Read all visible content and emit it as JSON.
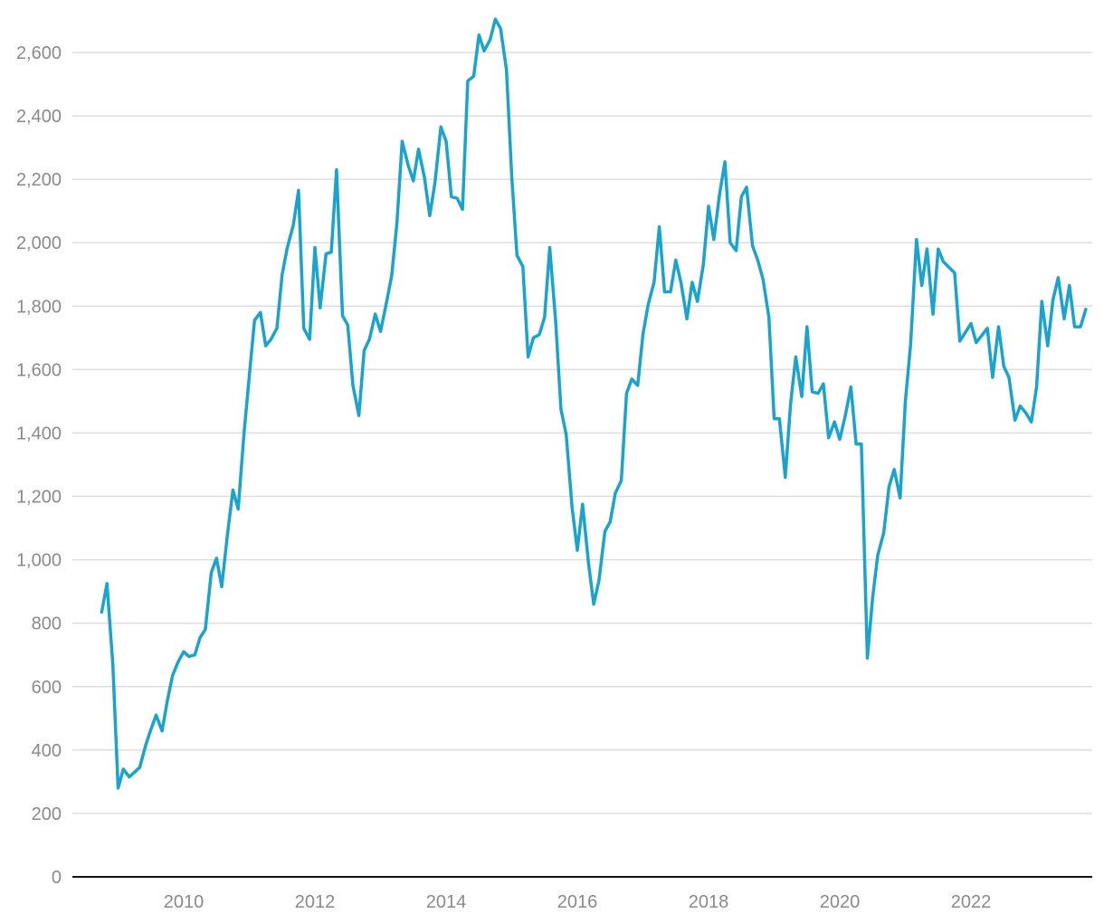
{
  "chart_data": {
    "type": "line",
    "title": "",
    "xlabel": "",
    "ylabel": "",
    "ylim": [
      0,
      2600
    ],
    "xlim": [
      2008.5,
      2023.75
    ],
    "grid": true,
    "legend": "none",
    "y_ticks": [
      {
        "value": 0,
        "label": "0"
      },
      {
        "value": 200,
        "label": "200"
      },
      {
        "value": 400,
        "label": "400"
      },
      {
        "value": 600,
        "label": "600"
      },
      {
        "value": 800,
        "label": "800"
      },
      {
        "value": 1000,
        "label": "1,000"
      },
      {
        "value": 1200,
        "label": "1,200"
      },
      {
        "value": 1400,
        "label": "1,400"
      },
      {
        "value": 1600,
        "label": "1,600"
      },
      {
        "value": 1800,
        "label": "1,800"
      },
      {
        "value": 2000,
        "label": "2,000"
      },
      {
        "value": 2200,
        "label": "2,200"
      },
      {
        "value": 2400,
        "label": "2,400"
      },
      {
        "value": 2600,
        "label": "2,600"
      }
    ],
    "x_ticks": [
      {
        "value": 2010,
        "label": "2010"
      },
      {
        "value": 2012,
        "label": "2012"
      },
      {
        "value": 2014,
        "label": "2014"
      },
      {
        "value": 2016,
        "label": "2016"
      },
      {
        "value": 2018,
        "label": "2018"
      },
      {
        "value": 2020,
        "label": "2020"
      },
      {
        "value": 2022,
        "label": "2022"
      }
    ],
    "series": [
      {
        "color": "#1aa3cc",
        "points": [
          [
            2008.75,
            835
          ],
          [
            2008.83,
            925
          ],
          [
            2008.92,
            670
          ],
          [
            2009.0,
            280
          ],
          [
            2009.08,
            340
          ],
          [
            2009.17,
            315
          ],
          [
            2009.25,
            330
          ],
          [
            2009.33,
            345
          ],
          [
            2009.42,
            415
          ],
          [
            2009.5,
            465
          ],
          [
            2009.58,
            510
          ],
          [
            2009.67,
            460
          ],
          [
            2009.75,
            555
          ],
          [
            2009.83,
            635
          ],
          [
            2009.92,
            680
          ],
          [
            2010.0,
            710
          ],
          [
            2010.08,
            695
          ],
          [
            2010.17,
            700
          ],
          [
            2010.25,
            755
          ],
          [
            2010.33,
            780
          ],
          [
            2010.42,
            960
          ],
          [
            2010.5,
            1005
          ],
          [
            2010.58,
            915
          ],
          [
            2010.67,
            1085
          ],
          [
            2010.75,
            1220
          ],
          [
            2010.83,
            1160
          ],
          [
            2010.92,
            1400
          ],
          [
            2011.0,
            1580
          ],
          [
            2011.08,
            1755
          ],
          [
            2011.17,
            1780
          ],
          [
            2011.25,
            1675
          ],
          [
            2011.33,
            1695
          ],
          [
            2011.42,
            1730
          ],
          [
            2011.5,
            1900
          ],
          [
            2011.58,
            1985
          ],
          [
            2011.67,
            2055
          ],
          [
            2011.75,
            2165
          ],
          [
            2011.83,
            1730
          ],
          [
            2011.92,
            1695
          ],
          [
            2012.0,
            1985
          ],
          [
            2012.08,
            1795
          ],
          [
            2012.17,
            1965
          ],
          [
            2012.25,
            1970
          ],
          [
            2012.33,
            2230
          ],
          [
            2012.42,
            1770
          ],
          [
            2012.5,
            1740
          ],
          [
            2012.58,
            1550
          ],
          [
            2012.67,
            1455
          ],
          [
            2012.75,
            1660
          ],
          [
            2012.83,
            1695
          ],
          [
            2012.92,
            1775
          ],
          [
            2013.0,
            1720
          ],
          [
            2013.08,
            1800
          ],
          [
            2013.17,
            1895
          ],
          [
            2013.25,
            2060
          ],
          [
            2013.33,
            2320
          ],
          [
            2013.42,
            2245
          ],
          [
            2013.5,
            2195
          ],
          [
            2013.58,
            2295
          ],
          [
            2013.67,
            2205
          ],
          [
            2013.75,
            2085
          ],
          [
            2013.83,
            2190
          ],
          [
            2013.92,
            2365
          ],
          [
            2014.0,
            2320
          ],
          [
            2014.08,
            2145
          ],
          [
            2014.17,
            2140
          ],
          [
            2014.25,
            2105
          ],
          [
            2014.33,
            2510
          ],
          [
            2014.42,
            2525
          ],
          [
            2014.5,
            2655
          ],
          [
            2014.58,
            2605
          ],
          [
            2014.67,
            2640
          ],
          [
            2014.75,
            2705
          ],
          [
            2014.83,
            2675
          ],
          [
            2014.92,
            2545
          ],
          [
            2015.0,
            2210
          ],
          [
            2015.08,
            1960
          ],
          [
            2015.17,
            1925
          ],
          [
            2015.25,
            1640
          ],
          [
            2015.33,
            1700
          ],
          [
            2015.42,
            1710
          ],
          [
            2015.5,
            1765
          ],
          [
            2015.58,
            1985
          ],
          [
            2015.67,
            1750
          ],
          [
            2015.75,
            1475
          ],
          [
            2015.83,
            1395
          ],
          [
            2015.92,
            1165
          ],
          [
            2016.0,
            1030
          ],
          [
            2016.08,
            1175
          ],
          [
            2016.17,
            990
          ],
          [
            2016.25,
            860
          ],
          [
            2016.33,
            935
          ],
          [
            2016.42,
            1090
          ],
          [
            2016.5,
            1120
          ],
          [
            2016.58,
            1210
          ],
          [
            2016.67,
            1250
          ],
          [
            2016.75,
            1525
          ],
          [
            2016.83,
            1570
          ],
          [
            2016.92,
            1550
          ],
          [
            2017.0,
            1710
          ],
          [
            2017.08,
            1805
          ],
          [
            2017.17,
            1875
          ],
          [
            2017.25,
            2050
          ],
          [
            2017.33,
            1845
          ],
          [
            2017.42,
            1845
          ],
          [
            2017.5,
            1945
          ],
          [
            2017.58,
            1875
          ],
          [
            2017.67,
            1760
          ],
          [
            2017.75,
            1875
          ],
          [
            2017.83,
            1815
          ],
          [
            2017.92,
            1930
          ],
          [
            2018.0,
            2115
          ],
          [
            2018.08,
            2010
          ],
          [
            2018.17,
            2155
          ],
          [
            2018.25,
            2255
          ],
          [
            2018.33,
            2000
          ],
          [
            2018.42,
            1975
          ],
          [
            2018.5,
            2145
          ],
          [
            2018.58,
            2175
          ],
          [
            2018.67,
            1990
          ],
          [
            2018.75,
            1945
          ],
          [
            2018.83,
            1885
          ],
          [
            2018.92,
            1765
          ],
          [
            2019.0,
            1445
          ],
          [
            2019.08,
            1445
          ],
          [
            2019.17,
            1260
          ],
          [
            2019.25,
            1490
          ],
          [
            2019.33,
            1640
          ],
          [
            2019.42,
            1515
          ],
          [
            2019.5,
            1735
          ],
          [
            2019.58,
            1530
          ],
          [
            2019.67,
            1525
          ],
          [
            2019.75,
            1555
          ],
          [
            2019.83,
            1385
          ],
          [
            2019.92,
            1435
          ],
          [
            2020.0,
            1380
          ],
          [
            2020.08,
            1450
          ],
          [
            2020.17,
            1545
          ],
          [
            2020.25,
            1365
          ],
          [
            2020.33,
            1365
          ],
          [
            2020.42,
            690
          ],
          [
            2020.5,
            880
          ],
          [
            2020.58,
            1015
          ],
          [
            2020.67,
            1085
          ],
          [
            2020.75,
            1230
          ],
          [
            2020.83,
            1285
          ],
          [
            2020.92,
            1195
          ],
          [
            2021.0,
            1500
          ],
          [
            2021.08,
            1680
          ],
          [
            2021.17,
            2010
          ],
          [
            2021.25,
            1865
          ],
          [
            2021.33,
            1980
          ],
          [
            2021.42,
            1775
          ],
          [
            2021.5,
            1980
          ],
          [
            2021.58,
            1940
          ],
          [
            2021.75,
            1905
          ],
          [
            2021.83,
            1690
          ],
          [
            2022.0,
            1745
          ],
          [
            2022.08,
            1685
          ],
          [
            2022.25,
            1730
          ],
          [
            2022.33,
            1575
          ],
          [
            2022.42,
            1735
          ],
          [
            2022.5,
            1610
          ],
          [
            2022.58,
            1575
          ],
          [
            2022.67,
            1440
          ],
          [
            2022.75,
            1485
          ],
          [
            2022.83,
            1465
          ],
          [
            2022.92,
            1435
          ],
          [
            2023.0,
            1545
          ],
          [
            2023.08,
            1815
          ],
          [
            2023.17,
            1675
          ],
          [
            2023.25,
            1820
          ],
          [
            2023.33,
            1890
          ],
          [
            2023.42,
            1760
          ],
          [
            2023.5,
            1865
          ],
          [
            2023.58,
            1735
          ],
          [
            2023.67,
            1735
          ],
          [
            2023.75,
            1790
          ]
        ]
      }
    ]
  }
}
